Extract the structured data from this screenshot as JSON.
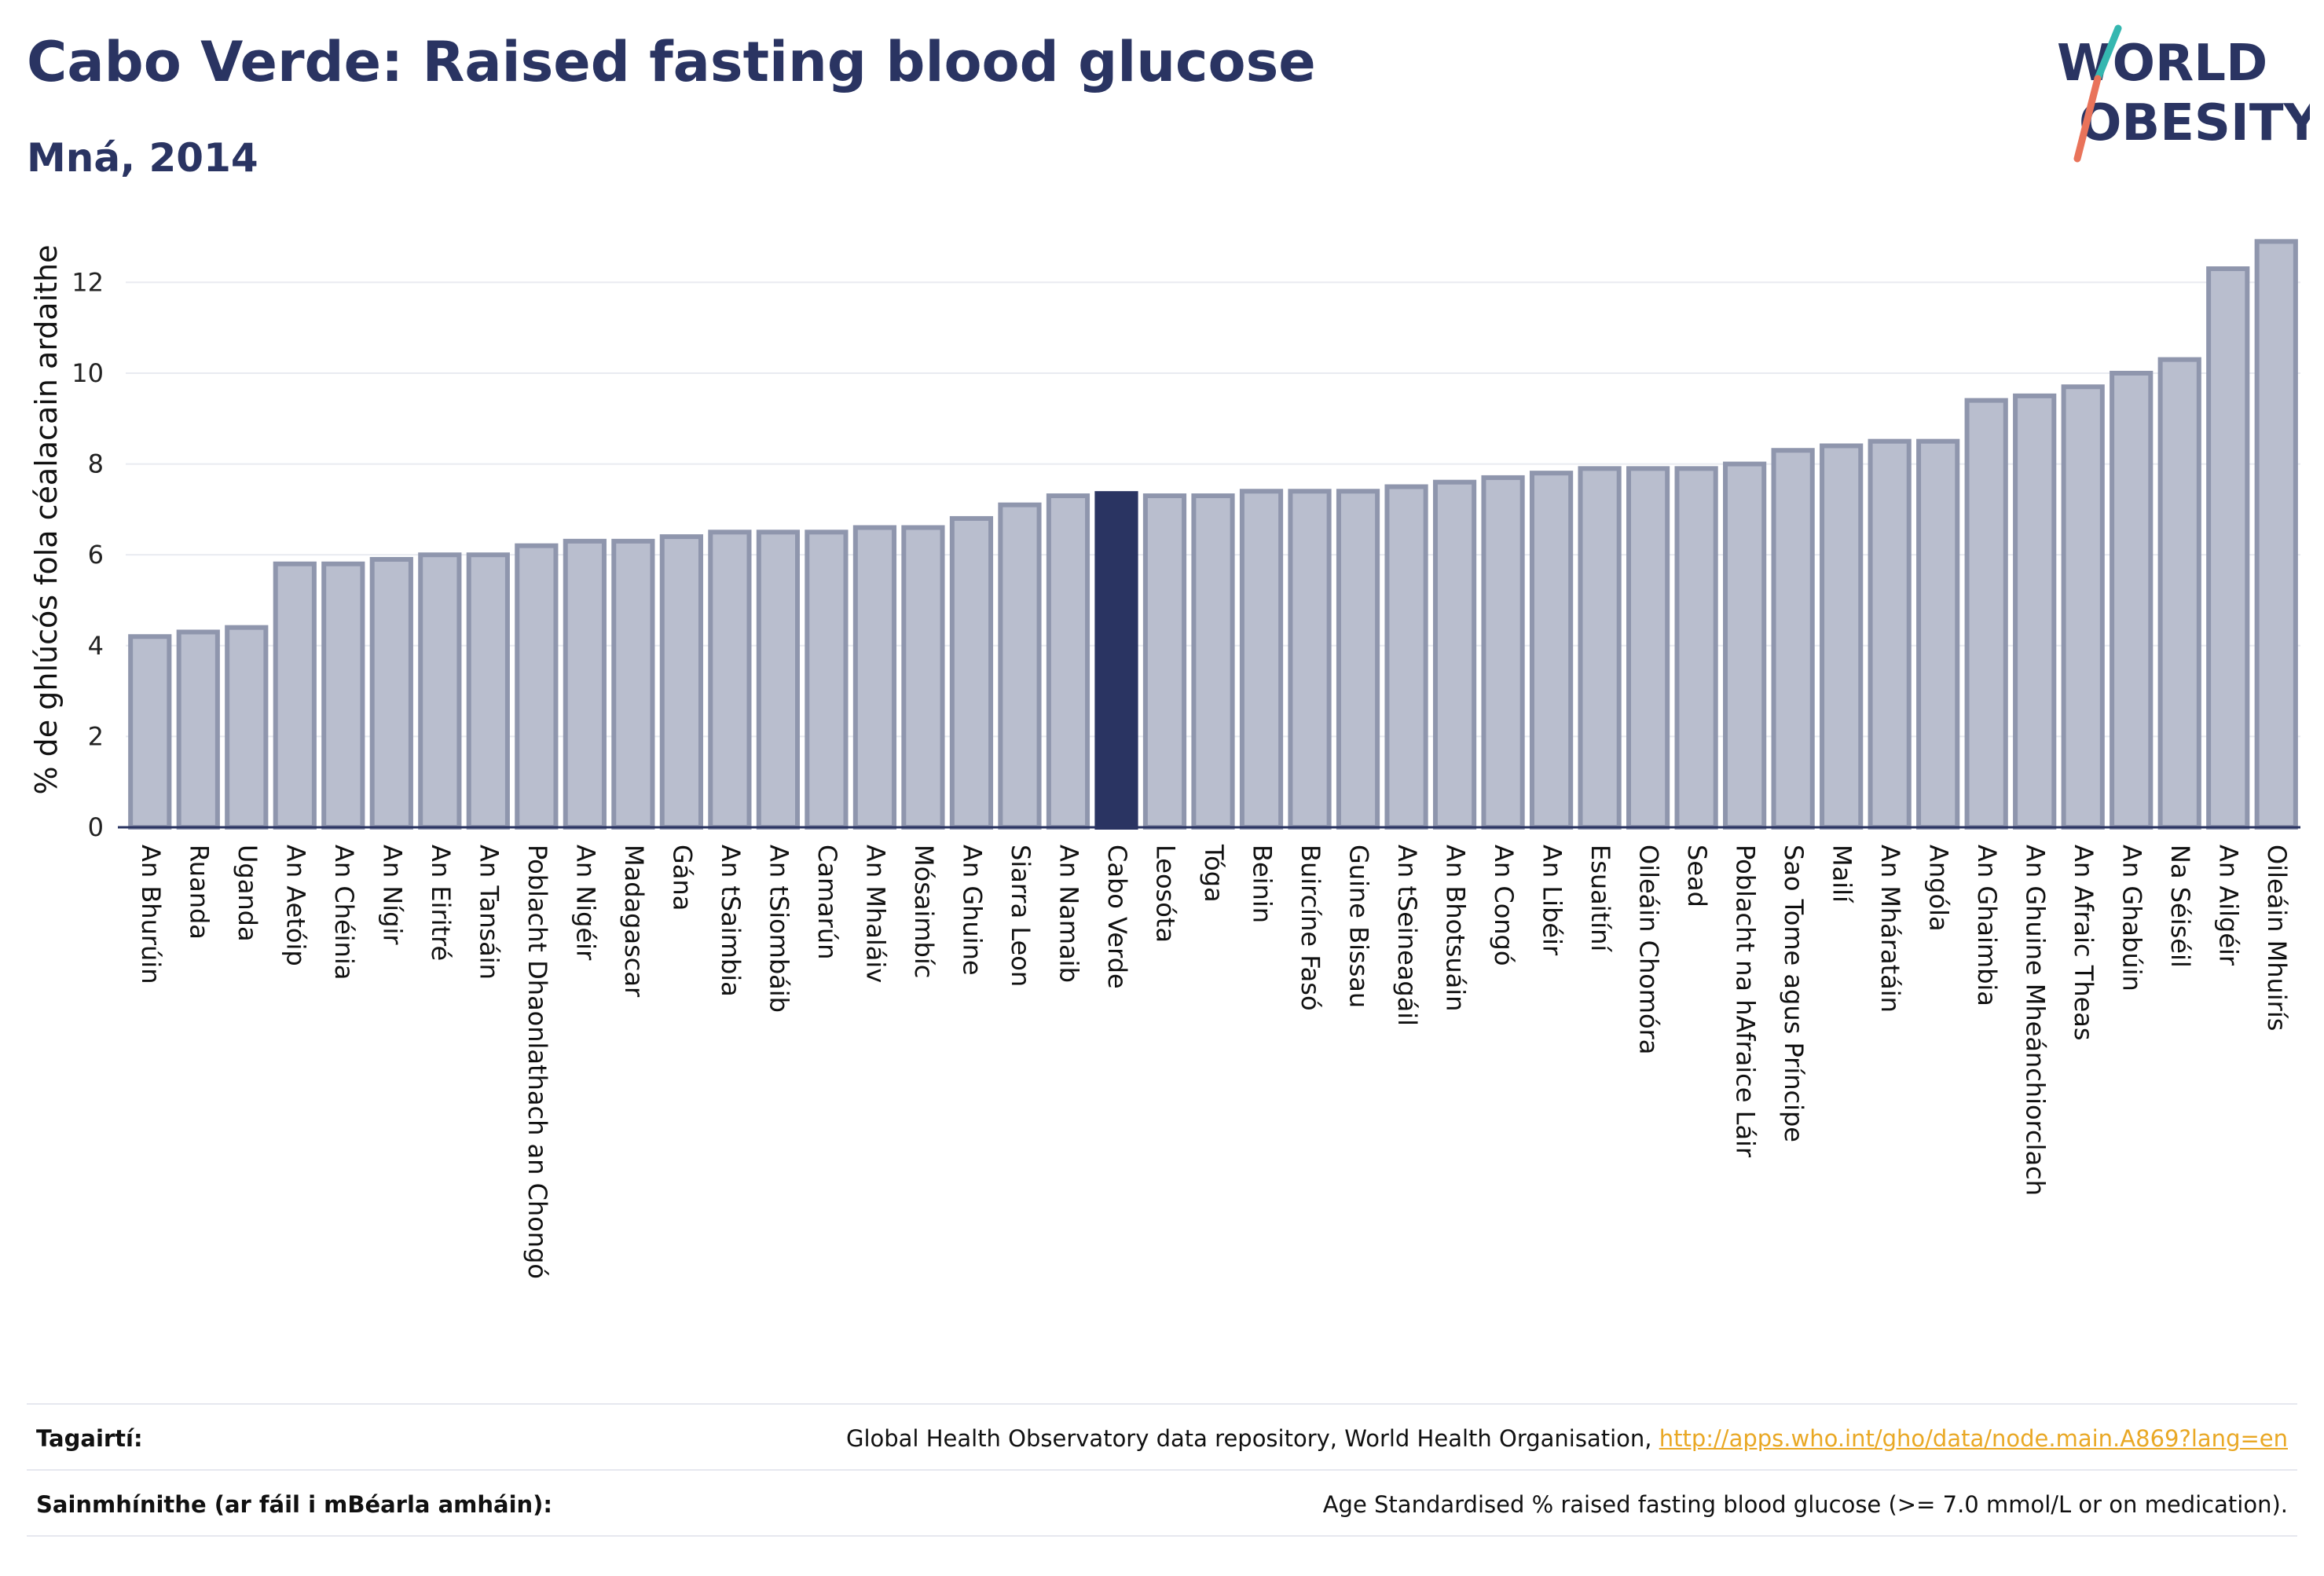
{
  "header": {
    "title": "Cabo Verde: Raised fasting blood glucose",
    "subtitle": "Mná, 2014"
  },
  "logo": {
    "line1": "WORLD",
    "line2": "OBESITY"
  },
  "colors": {
    "bar": "#b9bece",
    "bar_edge": "#8f96ad",
    "highlight": "#2a3462",
    "axis": "#2a3462",
    "grid": "#e9ebf1",
    "link": "#e9a825"
  },
  "chart_data": {
    "type": "bar",
    "ylabel": "% de ghlúcós fola céalacain ardaithe",
    "ylim": [
      0,
      13.2
    ],
    "yticks": [
      0,
      2,
      4,
      6,
      8,
      10,
      12
    ],
    "grid": true,
    "highlight": "Cabo Verde",
    "categories": [
      "An Bhurúin",
      "Ruanda",
      "Uganda",
      "An Aetóip",
      "An Chéinia",
      "An Nígir",
      "An Eiritré",
      "An Tansáin",
      "Poblacht Dhaonlathach an Chongó",
      "An Nigéir",
      "Madagascar",
      "Gána",
      "An tSaimbia",
      "An tSiombáib",
      "Camarún",
      "An Mhaláiv",
      "Mósaimbíc",
      "An Ghuine",
      "Siarra Leon",
      "An Namaib",
      "Cabo Verde",
      "Leosóta",
      "Tóga",
      "Beinin",
      "Buircíne Fasó",
      "Guine Bissau",
      "An tSeineagáil",
      "An Bhotsuáin",
      "An Congó",
      "An Libéir",
      "Esuaitíní",
      "Oileáin Chomóra",
      "Sead",
      "Poblacht na hAfraice Láir",
      "Sao Tome agus Príncipe",
      "Mailí",
      "An Mháratáin",
      "Angóla",
      "An Ghaimbia",
      "An Ghuine Mheánchiorclach",
      "An Afraic Theas",
      "An Ghabúin",
      "Na Séiséil",
      "An Ailgéir",
      "Oileáin Mhuirís"
    ],
    "values": [
      4.2,
      4.3,
      4.4,
      5.8,
      5.8,
      5.9,
      6.0,
      6.0,
      6.2,
      6.3,
      6.3,
      6.4,
      6.5,
      6.5,
      6.5,
      6.6,
      6.6,
      6.8,
      7.1,
      7.3,
      7.35,
      7.3,
      7.3,
      7.4,
      7.4,
      7.4,
      7.5,
      7.6,
      7.7,
      7.8,
      7.9,
      7.9,
      7.9,
      8.0,
      8.3,
      8.4,
      8.5,
      8.5,
      9.4,
      9.5,
      9.7,
      10.0,
      10.3,
      12.3,
      12.9
    ]
  },
  "footer": {
    "references_label": "Tagairtí:",
    "references_text": "Global Health Observatory data repository, World Health Organisation,",
    "references_link": "http://apps.who.int/gho/data/node.main.A869?lang=en",
    "definitions_label": "Sainmhínithe (ar fáil i mBéarla amháin):",
    "definitions_text": "Age Standardised % raised fasting blood glucose (>= 7.0 mmol/L or on medication)."
  }
}
